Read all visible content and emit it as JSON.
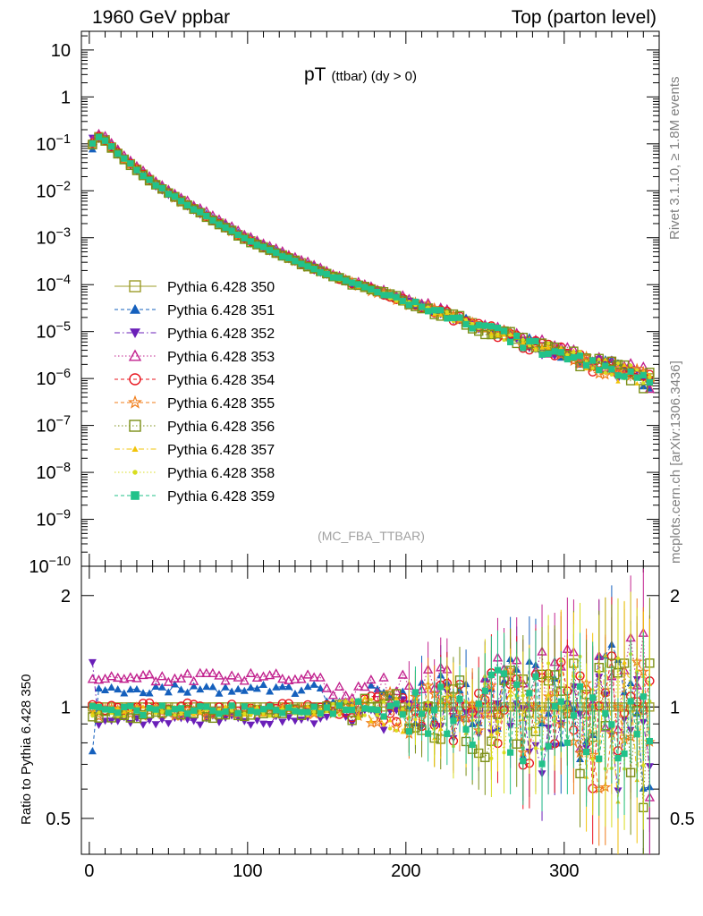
{
  "header": {
    "left": "1960 GeV ppbar",
    "right": "Top (parton level)"
  },
  "side_labels": {
    "rivet": "Rivet 3.1.10, ≥ 1.8M events",
    "mcplots": "mcplots.cern.ch [arXiv:1306.3436]"
  },
  "chart_data": [
    {
      "type": "scatter",
      "title": "pT",
      "title_sub": "(ttbar) (dy > 0)",
      "watermark": "(MC_FBA_TTBAR)",
      "xlabel": "",
      "ylabel": "",
      "xlim": [
        -5,
        360
      ],
      "ylim": [
        1e-10,
        25
      ],
      "log_y": true,
      "y_ticks": [
        {
          "v": 10,
          "t": "10"
        },
        {
          "v": 1,
          "t": "1"
        },
        {
          "v": 0.1,
          "t": "10^-1"
        },
        {
          "v": 0.01,
          "t": "10^-2"
        },
        {
          "v": 0.001,
          "t": "10^-3"
        },
        {
          "v": 0.0001,
          "t": "10^-4"
        },
        {
          "v": 1e-05,
          "t": "10^-5"
        },
        {
          "v": 1e-06,
          "t": "10^-6"
        },
        {
          "v": 1e-07,
          "t": "10^-7"
        },
        {
          "v": 1e-08,
          "t": "10^-8"
        },
        {
          "v": 1e-09,
          "t": "10^-9"
        },
        {
          "v": 1e-10,
          "t": "10^-10"
        }
      ],
      "x_bin_width": 4,
      "reference_curve": {
        "x": [
          2,
          6,
          10,
          20,
          40,
          60,
          80,
          100,
          120,
          150,
          180,
          200,
          220,
          240,
          260,
          280,
          300,
          320,
          340,
          356
        ],
        "y": [
          0.1,
          0.14,
          0.12,
          0.055,
          0.015,
          0.0055,
          0.0022,
          0.0009,
          0.00045,
          0.00017,
          7.5e-05,
          4.5e-05,
          2.7e-05,
          1.6e-05,
          9e-06,
          5.5e-06,
          3.3e-06,
          2.2e-06,
          1.4e-06,
          1e-06
        ]
      },
      "legend_position": "middle-left",
      "series": [
        {
          "name": "Pythia 6.428 350",
          "color": "#9c9c2a",
          "marker": "open-square",
          "line": "solid"
        },
        {
          "name": "Pythia 6.428 351",
          "color": "#1560bd",
          "marker": "filled-triangle-up",
          "line": "dashed"
        },
        {
          "name": "Pythia 6.428 352",
          "color": "#6a1fb8",
          "marker": "filled-triangle-down",
          "line": "dash-dot"
        },
        {
          "name": "Pythia 6.428 353",
          "color": "#c2238f",
          "marker": "open-triangle-up",
          "line": "dotted"
        },
        {
          "name": "Pythia 6.428 354",
          "color": "#e8141e",
          "marker": "open-circle",
          "line": "dashed"
        },
        {
          "name": "Pythia 6.428 355",
          "color": "#f07d1a",
          "marker": "open-star",
          "line": "dashed"
        },
        {
          "name": "Pythia 6.428 356",
          "color": "#7b8f16",
          "marker": "open-square",
          "line": "dotted"
        },
        {
          "name": "Pythia 6.428 357",
          "color": "#f2c40a",
          "marker": "small-triangle",
          "line": "dash-dot"
        },
        {
          "name": "Pythia 6.428 358",
          "color": "#d8dd1f",
          "marker": "small-dot",
          "line": "dotted"
        },
        {
          "name": "Pythia 6.428 359",
          "color": "#22c28a",
          "marker": "filled-square",
          "line": "dashed"
        }
      ]
    },
    {
      "type": "scatter",
      "title": "",
      "xlabel": "",
      "ylabel": "Ratio to Pythia 6.428 350",
      "xlim": [
        -5,
        360
      ],
      "ylim": [
        0.4,
        2.4
      ],
      "log_y": true,
      "x_ticks": [
        0,
        100,
        200,
        300
      ],
      "y_ticks": [
        {
          "v": 0.5,
          "t": "0.5"
        },
        {
          "v": 1,
          "t": "1"
        },
        {
          "v": 2,
          "t": "2"
        }
      ],
      "reference_line": 1,
      "approx_ratio_levels": {
        "note_series": [
          "Pythia 6.428 351",
          "Pythia 6.428 352",
          "Pythia 6.428 353",
          "Pythia 6.428 354",
          "Pythia 6.428 355",
          "Pythia 6.428 356",
          "Pythia 6.428 357",
          "Pythia 6.428 358",
          "Pythia 6.428 359"
        ],
        "low_pt_level": [
          1.12,
          0.92,
          1.2,
          1.0,
          0.97,
          0.96,
          0.98,
          0.97,
          0.98
        ]
      }
    }
  ]
}
